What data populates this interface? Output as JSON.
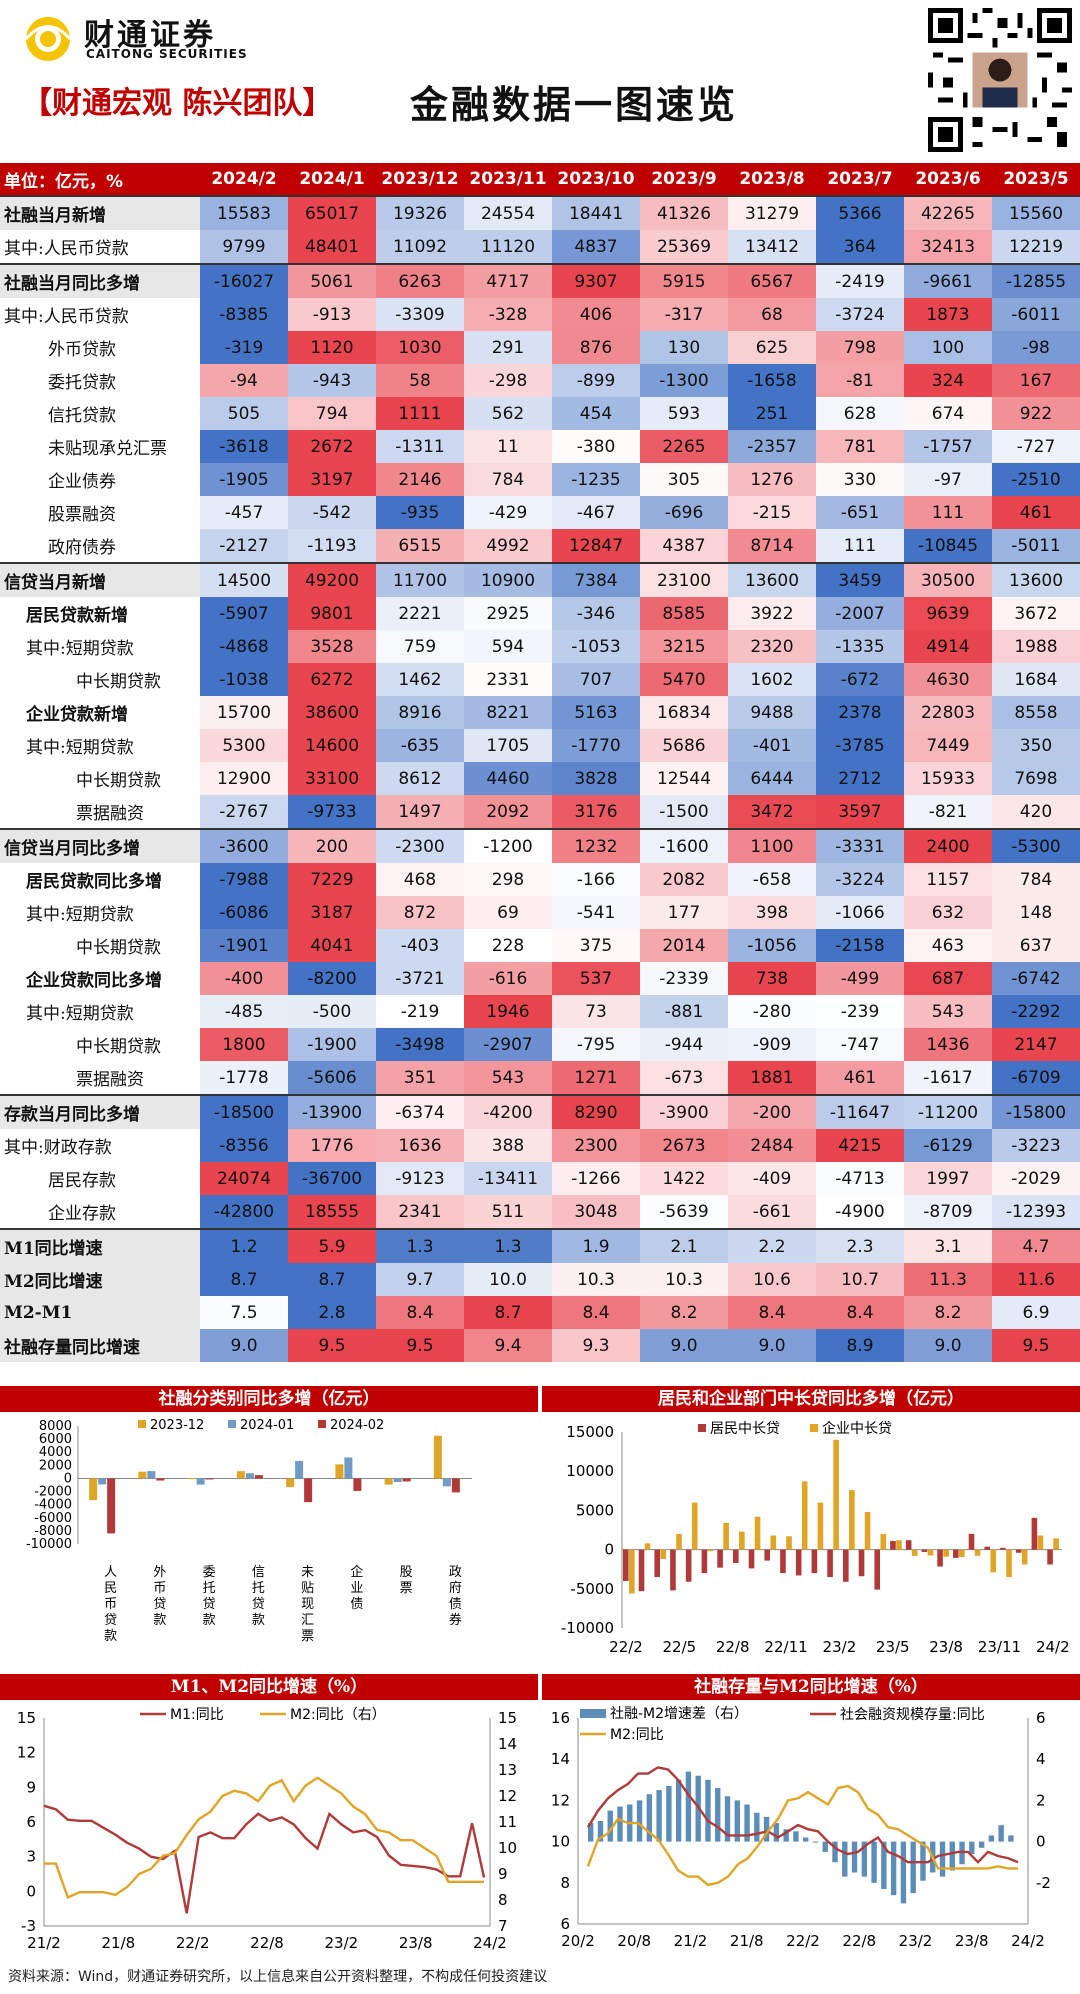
{
  "header": {
    "logo_cn": "财通证券",
    "logo_en": "CAITONG SECURITIES",
    "team": "【财通宏观 陈兴团队】",
    "title": "金融数据一图速览"
  },
  "table": {
    "unit_label": "单位：亿元，%",
    "columns": [
      "2024/2",
      "2024/1",
      "2023/12",
      "2023/11",
      "2023/10",
      "2023/9",
      "2023/8",
      "2023/7",
      "2023/6",
      "2023/5"
    ],
    "rows": [
      {
        "label": "社融当月新增",
        "bold": true,
        "indent": 0,
        "sep": true,
        "values": [
          15583,
          65017,
          19326,
          24554,
          18441,
          41326,
          31279,
          5366,
          42265,
          15560
        ]
      },
      {
        "label": "其中:人民币贷款",
        "bold": false,
        "indent": 0,
        "values": [
          9799,
          48401,
          11092,
          11120,
          4837,
          25369,
          13412,
          364,
          32413,
          12219
        ]
      },
      {
        "label": "社融当月同比多增",
        "bold": true,
        "indent": 0,
        "sep": true,
        "values": [
          -16027,
          5061,
          6263,
          4717,
          9307,
          5915,
          6567,
          -2419,
          -9661,
          -12855
        ]
      },
      {
        "label": "其中:人民币贷款",
        "bold": false,
        "indent": 0,
        "values": [
          -8385,
          -913,
          -3309,
          -328,
          406,
          -317,
          68,
          -3724,
          1873,
          -6011
        ]
      },
      {
        "label": "外币贷款",
        "bold": false,
        "indent": 2,
        "values": [
          -319,
          1120,
          1030,
          291,
          876,
          130,
          625,
          798,
          100,
          -98
        ]
      },
      {
        "label": "委托贷款",
        "bold": false,
        "indent": 2,
        "values": [
          -94,
          -943,
          58,
          -298,
          -899,
          -1300,
          -1658,
          -81,
          324,
          167
        ]
      },
      {
        "label": "信托贷款",
        "bold": false,
        "indent": 2,
        "values": [
          505,
          794,
          1111,
          562,
          454,
          593,
          251,
          628,
          674,
          922
        ]
      },
      {
        "label": "未贴现承兑汇票",
        "bold": false,
        "indent": 2,
        "values": [
          -3618,
          2672,
          -1311,
          11,
          -380,
          2265,
          -2357,
          781,
          -1757,
          -727
        ]
      },
      {
        "label": "企业债券",
        "bold": false,
        "indent": 2,
        "values": [
          -1905,
          3197,
          2146,
          784,
          -1235,
          305,
          1276,
          330,
          -97,
          -2510
        ]
      },
      {
        "label": "股票融资",
        "bold": false,
        "indent": 2,
        "values": [
          -457,
          -542,
          -935,
          -429,
          -467,
          -696,
          -215,
          -651,
          111,
          461
        ]
      },
      {
        "label": "政府债券",
        "bold": false,
        "indent": 2,
        "values": [
          -2127,
          -1193,
          6515,
          4992,
          12847,
          4387,
          8714,
          111,
          -10845,
          -5011
        ]
      },
      {
        "label": "信贷当月新增",
        "bold": true,
        "indent": 0,
        "sep": true,
        "values": [
          14500,
          49200,
          11700,
          10900,
          7384,
          23100,
          13600,
          3459,
          30500,
          13600
        ]
      },
      {
        "label": "居民贷款新增",
        "bold": true,
        "indent": 1,
        "values": [
          -5907,
          9801,
          2221,
          2925,
          -346,
          8585,
          3922,
          -2007,
          9639,
          3672
        ]
      },
      {
        "label": "其中:短期贷款",
        "bold": false,
        "indent": 1,
        "values": [
          -4868,
          3528,
          759,
          594,
          -1053,
          3215,
          2320,
          -1335,
          4914,
          1988
        ]
      },
      {
        "label": "中长期贷款",
        "bold": false,
        "indent": 3,
        "values": [
          -1038,
          6272,
          1462,
          2331,
          707,
          5470,
          1602,
          -672,
          4630,
          1684
        ]
      },
      {
        "label": "企业贷款新增",
        "bold": true,
        "indent": 1,
        "values": [
          15700,
          38600,
          8916,
          8221,
          5163,
          16834,
          9488,
          2378,
          22803,
          8558
        ]
      },
      {
        "label": "其中:短期贷款",
        "bold": false,
        "indent": 1,
        "values": [
          5300,
          14600,
          -635,
          1705,
          -1770,
          5686,
          -401,
          -3785,
          7449,
          350
        ]
      },
      {
        "label": "中长期贷款",
        "bold": false,
        "indent": 3,
        "values": [
          12900,
          33100,
          8612,
          4460,
          3828,
          12544,
          6444,
          2712,
          15933,
          7698
        ]
      },
      {
        "label": "票据融资",
        "bold": false,
        "indent": 3,
        "values": [
          -2767,
          -9733,
          1497,
          2092,
          3176,
          -1500,
          3472,
          3597,
          -821,
          420
        ]
      },
      {
        "label": "信贷当月同比多增",
        "bold": true,
        "indent": 0,
        "sep": true,
        "values": [
          -3600,
          200,
          -2300,
          -1200,
          1232,
          -1600,
          1100,
          -3331,
          2400,
          -5300
        ]
      },
      {
        "label": "居民贷款同比多增",
        "bold": true,
        "indent": 1,
        "values": [
          -7988,
          7229,
          468,
          298,
          -166,
          2082,
          -658,
          -3224,
          1157,
          784
        ]
      },
      {
        "label": "其中:短期贷款",
        "bold": false,
        "indent": 1,
        "values": [
          -6086,
          3187,
          872,
          69,
          -541,
          177,
          398,
          -1066,
          632,
          148
        ]
      },
      {
        "label": "中长期贷款",
        "bold": false,
        "indent": 3,
        "values": [
          -1901,
          4041,
          -403,
          228,
          375,
          2014,
          -1056,
          -2158,
          463,
          637
        ]
      },
      {
        "label": "企业贷款同比多增",
        "bold": true,
        "indent": 1,
        "values": [
          -400,
          -8200,
          -3721,
          -616,
          537,
          -2339,
          738,
          -499,
          687,
          -6742
        ]
      },
      {
        "label": "其中:短期贷款",
        "bold": false,
        "indent": 1,
        "values": [
          -485,
          -500,
          -219,
          1946,
          73,
          -881,
          -280,
          -239,
          543,
          -2292
        ]
      },
      {
        "label": "中长期贷款",
        "bold": false,
        "indent": 3,
        "values": [
          1800,
          -1900,
          -3498,
          -2907,
          -795,
          -944,
          -909,
          -747,
          1436,
          2147
        ]
      },
      {
        "label": "票据融资",
        "bold": false,
        "indent": 3,
        "values": [
          -1778,
          -5606,
          351,
          543,
          1271,
          -673,
          1881,
          461,
          -1617,
          -6709
        ]
      },
      {
        "label": "存款当月同比多增",
        "bold": true,
        "indent": 0,
        "sep": true,
        "values": [
          -18500,
          -13900,
          -6374,
          -4200,
          8290,
          -3900,
          -200,
          -11647,
          -11200,
          -15800
        ]
      },
      {
        "label": "其中:财政存款",
        "bold": false,
        "indent": 0,
        "values": [
          -8356,
          1776,
          1636,
          388,
          2300,
          2673,
          2484,
          4215,
          -6129,
          -3223
        ]
      },
      {
        "label": "居民存款",
        "bold": false,
        "indent": 2,
        "values": [
          24074,
          -36700,
          -9123,
          -13411,
          -1266,
          1422,
          -409,
          -4713,
          1997,
          -2029
        ]
      },
      {
        "label": "企业存款",
        "bold": false,
        "indent": 2,
        "values": [
          -42800,
          18555,
          2341,
          511,
          3048,
          -5639,
          -661,
          -4900,
          -8709,
          -12393
        ]
      },
      {
        "label": "M1同比增速",
        "bold": true,
        "indent": 0,
        "sep": true,
        "values": [
          "1.2",
          "5.9",
          "1.3",
          "1.3",
          "1.9",
          "2.1",
          "2.2",
          "2.3",
          "3.1",
          "4.7"
        ]
      },
      {
        "label": "M2同比增速",
        "bold": true,
        "indent": 0,
        "values": [
          "8.7",
          "8.7",
          "9.7",
          "10.0",
          "10.3",
          "10.3",
          "10.6",
          "10.7",
          "11.3",
          "11.6"
        ]
      },
      {
        "label": "M2-M1",
        "bold": true,
        "indent": 0,
        "values": [
          "7.5",
          "2.8",
          "8.4",
          "8.7",
          "8.4",
          "8.2",
          "8.4",
          "8.4",
          "8.2",
          "6.9"
        ]
      },
      {
        "label": "社融存量同比增速",
        "bold": true,
        "indent": 0,
        "values": [
          "9.0",
          "9.5",
          "9.5",
          "9.4",
          "9.3",
          "9.0",
          "9.0",
          "8.9",
          "9.0",
          "9.5"
        ]
      }
    ]
  },
  "sections": {
    "s1": "社融分类别同比多增（亿元）",
    "s2": "居民和企业部门中长贷同比多增（亿元）",
    "s3": "M1、M2同比增速（%）",
    "s4": "社融存量与M2同比增速（%）"
  },
  "colors": {
    "red": "#e8454f",
    "blue": "#4472c4",
    "header_red": "#c00000",
    "gold": "#e0a526",
    "darkred": "#a52a2a",
    "steel": "#5b8db8"
  },
  "chart_data": [
    {
      "type": "bar",
      "title": "社融分类别同比多增（亿元）",
      "categories": [
        "人民币贷款",
        "外币贷款",
        "委托贷款",
        "信托贷款",
        "未贴现汇票",
        "企业债",
        "股票",
        "政府债券"
      ],
      "series": [
        {
          "name": "2023-12",
          "color": "#e0a526",
          "values": [
            -3309,
            1030,
            58,
            1111,
            -1311,
            2146,
            -935,
            6515
          ]
        },
        {
          "name": "2024-01",
          "color": "#6f9bc4",
          "values": [
            -913,
            1120,
            -943,
            794,
            2672,
            3197,
            -542,
            -1193
          ]
        },
        {
          "name": "2024-02",
          "color": "#b03a3a",
          "values": [
            -8385,
            -319,
            -94,
            505,
            -3618,
            -1905,
            -457,
            -2127
          ]
        }
      ],
      "yticks": [
        "8000",
        "6000",
        "4000",
        "2000",
        "0",
        "-2000",
        "-4000",
        "-6000",
        "-8000",
        "-10000"
      ],
      "ylim": [
        -10000,
        8000
      ],
      "legend": "top"
    },
    {
      "type": "bar",
      "title": "居民和企业部门中长贷同比多增（亿元）",
      "xticks": [
        "22/2",
        "22/5",
        "22/8",
        "22/11",
        "23/2",
        "23/5",
        "23/8",
        "23/11",
        "24/2"
      ],
      "yticks": [
        "15000",
        "10000",
        "5000",
        "0",
        "-5000",
        "-10000"
      ],
      "ylim": [
        -10000,
        15000
      ],
      "series": [
        {
          "name": "居民中长贷",
          "color": "#b03a3a",
          "values": [
            -4000,
            -5300,
            -3500,
            -5200,
            -4100,
            -3000,
            -2300,
            -1700,
            -2400,
            -1400,
            -3000,
            -3300,
            -3000,
            -3500,
            -4100,
            -3400,
            -5100,
            1100,
            1200,
            -300,
            -2158,
            -1056,
            2014,
            375,
            228,
            -403,
            4041,
            -1901
          ]
        },
        {
          "name": "企业中长贷",
          "color": "#e0a526",
          "values": [
            -5600,
            800,
            -1200,
            2000,
            6000,
            -200,
            3400,
            2300,
            4200,
            1800,
            1700,
            8700,
            6000,
            14000,
            7600,
            4800,
            2000,
            1200,
            -800,
            -747,
            -909,
            -944,
            -795,
            -2907,
            -3498,
            -1900,
            1800,
            1436
          ]
        }
      ],
      "legend": "top-left"
    },
    {
      "type": "line",
      "title": "M1、M2同比增速（%）",
      "xticks": [
        "21/2",
        "21/8",
        "22/2",
        "22/8",
        "23/2",
        "23/8",
        "24/2"
      ],
      "y_left_ticks": [
        "15",
        "12",
        "9",
        "6",
        "3",
        "0",
        "-3"
      ],
      "y_right_ticks": [
        "15",
        "14",
        "13",
        "12",
        "11",
        "10",
        "9",
        "8",
        "7"
      ],
      "series": [
        {
          "name": "M1:同比",
          "axis": "left",
          "color": "#b03a3a",
          "values": [
            7.4,
            7.1,
            6.2,
            6.1,
            6.1,
            5.5,
            4.9,
            4.2,
            3.7,
            3.0,
            2.8,
            3.5,
            -1.9,
            4.7,
            5.1,
            4.6,
            4.6,
            5.8,
            6.7,
            6.1,
            6.4,
            5.8,
            4.6,
            3.7,
            6.7,
            5.8,
            5.1,
            5.3,
            4.7,
            3.1,
            2.3,
            2.2,
            2.1,
            1.9,
            1.3,
            1.3,
            5.9,
            1.2
          ]
        },
        {
          "name": "M2:同比（右）",
          "axis": "right",
          "color": "#e0a526",
          "values": [
            9.4,
            9.4,
            8.1,
            8.3,
            8.3,
            8.3,
            8.2,
            8.5,
            9.0,
            9.2,
            9.7,
            9.8,
            10.5,
            11.1,
            11.4,
            12.0,
            12.2,
            12.1,
            11.8,
            12.4,
            12.6,
            11.8,
            12.4,
            12.7,
            12.4,
            12.1,
            11.6,
            11.3,
            10.7,
            10.6,
            10.3,
            10.3,
            10.0,
            9.7,
            8.7,
            8.7,
            8.7,
            8.7
          ]
        }
      ],
      "legend": "top"
    },
    {
      "type": "line",
      "title": "社融存量与M2同比增速（%）",
      "xticks": [
        "20/2",
        "20/8",
        "21/2",
        "21/8",
        "22/2",
        "22/8",
        "23/2",
        "23/8",
        "24/2"
      ],
      "y_left_ticks": [
        "16",
        "14",
        "12",
        "10",
        "8",
        "6"
      ],
      "y_right_ticks": [
        "6",
        "4",
        "2",
        "0",
        "-2"
      ],
      "series": [
        {
          "name": "社融-M2增速差（右）",
          "axis": "right",
          "type": "bar",
          "color": "#5b8db8",
          "values": [
            0.9,
            1.0,
            1.5,
            1.7,
            1.8,
            2.0,
            2.3,
            2.5,
            2.7,
            3.0,
            3.4,
            3.2,
            3.0,
            2.6,
            2.2,
            2.0,
            1.8,
            1.4,
            1.2,
            0.9,
            0.6,
            0.5,
            0.2,
            0.0,
            -0.5,
            -1.0,
            -1.7,
            -1.5,
            -1.7,
            -2.0,
            -2.3,
            -2.6,
            -3.0,
            -2.5,
            -1.9,
            -1.5,
            -1.7,
            -1.4,
            -1.1,
            -0.6,
            -0.3,
            0.3,
            0.8,
            0.3
          ]
        },
        {
          "name": "社会融资规模存量:同比",
          "axis": "left",
          "color": "#b03a3a",
          "values": [
            10.7,
            11.5,
            12.1,
            12.5,
            12.8,
            13.3,
            13.3,
            13.6,
            13.5,
            13.0,
            12.3,
            11.7,
            11.0,
            10.7,
            10.3,
            10.3,
            10.3,
            10.4,
            10.5,
            10.2,
            10.5,
            10.8,
            10.6,
            10.5,
            10.0,
            9.6,
            9.4,
            9.5,
            9.9,
            10.2,
            9.5,
            9.3,
            9.0,
            9.0,
            9.0,
            9.3,
            9.4,
            9.5,
            9.5,
            9.0,
            9.5,
            9.3,
            9.2,
            9.0
          ]
        },
        {
          "name": "M2:同比",
          "axis": "left",
          "color": "#e0a526",
          "values": [
            8.8,
            10.1,
            10.4,
            11.1,
            10.9,
            10.9,
            10.5,
            10.1,
            9.4,
            8.6,
            8.3,
            8.3,
            7.9,
            8.0,
            8.3,
            8.9,
            9.2,
            9.8,
            10.5,
            11.1,
            12.0,
            12.1,
            12.4,
            12.1,
            11.8,
            12.6,
            12.7,
            12.4,
            11.6,
            11.3,
            10.7,
            10.6,
            10.3,
            10.0,
            9.7,
            8.7,
            8.7,
            8.7,
            8.7,
            8.7,
            8.7,
            8.8,
            8.7,
            8.7
          ]
        }
      ],
      "legend": "top"
    }
  ],
  "footnote": "资料来源：Wind，财通证券研究所，以上信息来自公开资料整理，不构成任何投资建议"
}
